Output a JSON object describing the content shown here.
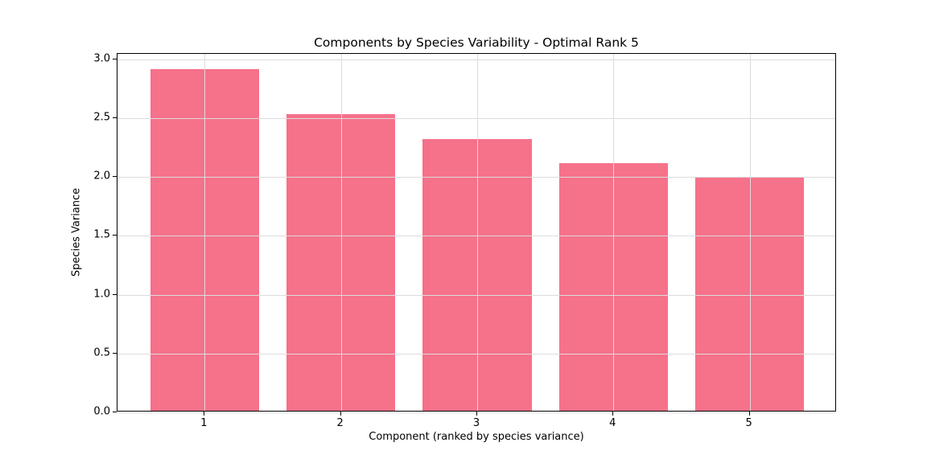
{
  "chart_data": {
    "type": "bar",
    "title": "Components by Species Variability - Optimal Rank 5",
    "xlabel": "Component (ranked by species variance)",
    "ylabel": "Species Variance",
    "categories": [
      "1",
      "2",
      "3",
      "4",
      "5"
    ],
    "values": [
      2.9,
      2.52,
      2.31,
      2.1,
      1.98
    ],
    "ylim": [
      0,
      3.045
    ],
    "yticks": [
      0.0,
      0.5,
      1.0,
      1.5,
      2.0,
      2.5,
      3.0
    ],
    "ytick_labels": [
      "0.0",
      "0.5",
      "1.0",
      "1.5",
      "2.0",
      "2.5",
      "3.0"
    ],
    "bar_color": "#F6718A",
    "grid": true,
    "grid_color": "#dcdcdc",
    "legend": null,
    "background_color": "#ffffff"
  }
}
